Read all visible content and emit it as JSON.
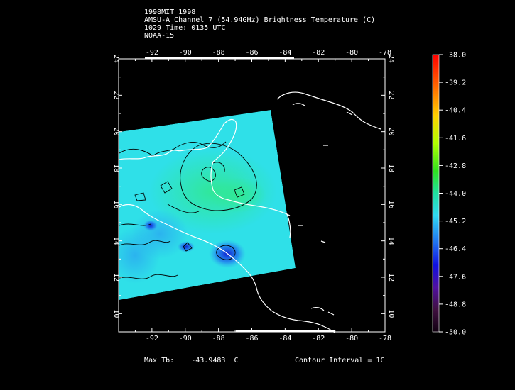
{
  "header": {
    "line1": "1998MIT 1998",
    "line2": "AMSU-A Channel 7 (54.94GHz) Brightness Temperature (C)",
    "line3": "1029 Time: 0135 UTC",
    "line4": "NOAA-15"
  },
  "footer": {
    "max_label": "Max Tb:",
    "max_value": "-43.9483",
    "max_unit": "C",
    "contour_interval": "Contour Interval = 1C"
  },
  "map": {
    "lon_range": [
      -94,
      -78
    ],
    "lat_range": [
      9,
      24
    ],
    "lon_ticks": [
      "-92",
      "-90",
      "-88",
      "-86",
      "-84",
      "-82",
      "-80",
      "-78"
    ],
    "lat_ticks": [
      "10",
      "12",
      "14",
      "16",
      "18",
      "20",
      "22",
      "24"
    ],
    "lon_values": [
      -92,
      -90,
      -88,
      -86,
      -84,
      -82,
      -80,
      -78
    ],
    "lat_values": [
      10,
      12,
      14,
      16,
      18,
      20,
      22,
      24
    ]
  },
  "colorbar": {
    "labels": [
      "-38.0",
      "-39.2",
      "-40.4",
      "-41.6",
      "-42.8",
      "-44.0",
      "-45.2",
      "-46.4",
      "-47.6",
      "-48.8",
      "-50.0"
    ],
    "max": -38.0,
    "min": -50.0
  },
  "colors": {
    "swath_base": "#2fe0e8",
    "swath_green": "#2ee6a8",
    "swath_blue": "#2f8cf0",
    "swath_deep": "#1030d8",
    "coastline": "#ffffff",
    "contour": "#000000"
  }
}
